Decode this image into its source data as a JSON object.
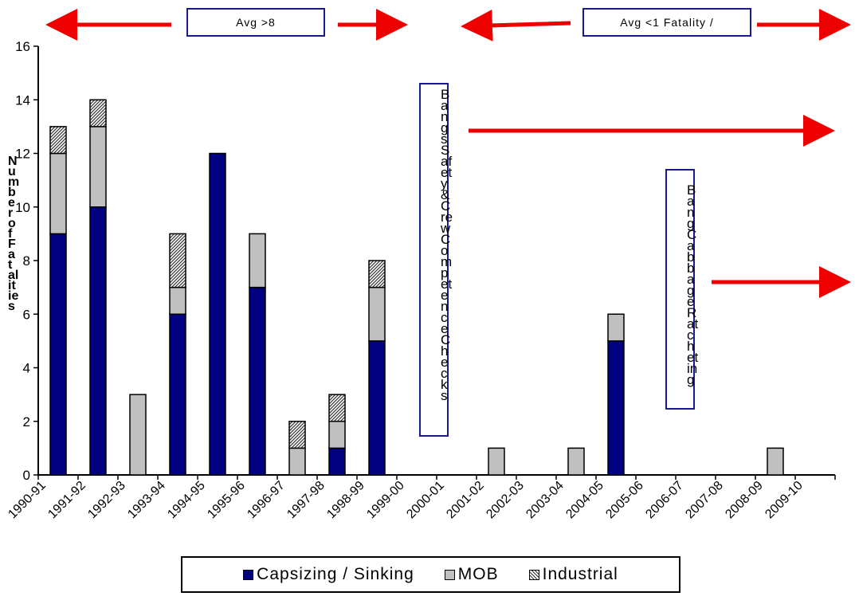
{
  "chart_data": {
    "type": "bar",
    "stacked": true,
    "categories": [
      "1990-91",
      "1991-92",
      "1992-93",
      "1993-94",
      "1994-95",
      "1995-96",
      "1996-97",
      "1997-98",
      "1998-99",
      "1999-00",
      "2000-01",
      "2001-02",
      "2002-03",
      "2003-04",
      "2004-05",
      "2005-06",
      "2006-07",
      "2007-08",
      "2008-09",
      "2009-10"
    ],
    "series": [
      {
        "name": "Capsizing / Sinking",
        "values": [
          9,
          10,
          0,
          6,
          12,
          7,
          0,
          1,
          5,
          0,
          0,
          0,
          0,
          0,
          5,
          0,
          0,
          0,
          0,
          0
        ],
        "color": "#000080"
      },
      {
        "name": "MOB",
        "values": [
          3,
          3,
          3,
          1,
          0,
          2,
          1,
          1,
          2,
          0,
          0,
          1,
          0,
          1,
          1,
          0,
          0,
          0,
          1,
          0
        ],
        "color": "#c0c0c0"
      },
      {
        "name": "Industrial",
        "values": [
          1,
          1,
          0,
          2,
          0,
          0,
          1,
          1,
          1,
          0,
          0,
          0,
          0,
          0,
          0,
          0,
          0,
          0,
          0,
          0
        ],
        "pattern": "hatched"
      }
    ],
    "ylabel": "Number of Fatalities",
    "ylim": [
      0,
      16
    ],
    "yticks": [
      "0",
      "2",
      "4",
      "6",
      "8",
      "10",
      "12",
      "14",
      "16"
    ],
    "grid": false,
    "legend_position": "bottom",
    "annotations": {
      "banner_left": "Avg >8",
      "banner_right": "Avg <1 Fatality /",
      "vertical_note_1": "Bangs Safety & Crew Competence Checks",
      "vertical_note_2": "Bang Cabbage Ratcheting"
    }
  },
  "colors": {
    "accent_arrow": "#ee0000",
    "box_border": "#1a1a8c"
  }
}
